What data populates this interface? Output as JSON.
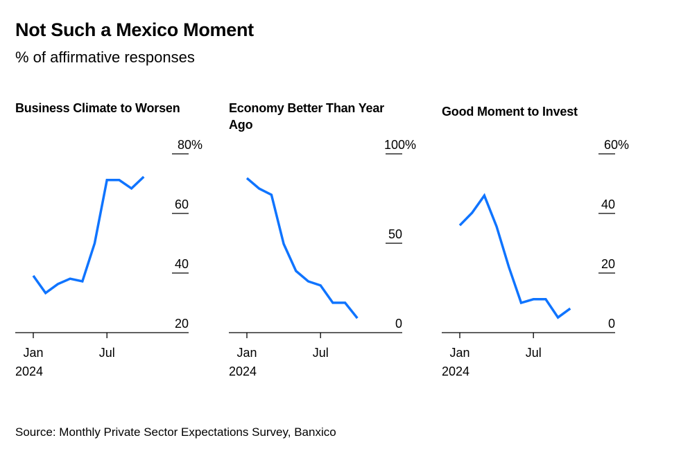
{
  "title": "Not Such a Mexico Moment",
  "subtitle": "% of affirmative responses",
  "source": "Source: Monthly Private Sector Expectations Survey, Banxico",
  "line_color": "#0f74ff",
  "chart_data": [
    {
      "type": "line",
      "title": "Business Climate to Worsen",
      "x": [
        "2024-01",
        "2024-02",
        "2024-03",
        "2024-04",
        "2024-05",
        "2024-06",
        "2024-07",
        "2024-08",
        "2024-09",
        "2024-10"
      ],
      "values": [
        39.1,
        33.3,
        36.3,
        38.1,
        37.2,
        50.0,
        71.2,
        71.2,
        68.4,
        72.3
      ],
      "ylim": [
        20,
        80
      ],
      "yticks": [
        20,
        40,
        60,
        80
      ],
      "ytick_labels": [
        "20",
        "40",
        "60",
        "80%"
      ],
      "xtick_labels": [
        "Jan",
        "Jul"
      ],
      "xtick_sublabel": "2024"
    },
    {
      "type": "line",
      "title": "Economy Better Than Year Ago",
      "x": [
        "2024-01",
        "2024-02",
        "2024-03",
        "2024-04",
        "2024-05",
        "2024-06",
        "2024-07",
        "2024-08",
        "2024-09",
        "2024-10"
      ],
      "values": [
        86.4,
        80.6,
        77.1,
        49.6,
        34.5,
        28.7,
        26.4,
        16.7,
        16.7,
        8.1
      ],
      "ylim": [
        0,
        100
      ],
      "yticks": [
        0,
        50,
        100
      ],
      "ytick_labels": [
        "0",
        "50",
        "100%"
      ],
      "xtick_labels": [
        "Jan",
        "Jul"
      ],
      "xtick_sublabel": "2024"
    },
    {
      "type": "line",
      "title": "Good Moment to Invest",
      "x": [
        "2024-01",
        "2024-02",
        "2024-03",
        "2024-04",
        "2024-05",
        "2024-06",
        "2024-07",
        "2024-08",
        "2024-09",
        "2024-10"
      ],
      "values": [
        36.0,
        40.2,
        46.0,
        35.6,
        22.0,
        10.0,
        11.2,
        11.2,
        5.1,
        8.1
      ],
      "ylim": [
        0,
        60
      ],
      "yticks": [
        0,
        20,
        40,
        60
      ],
      "ytick_labels": [
        "0",
        "20",
        "40",
        "60%"
      ],
      "xtick_labels": [
        "Jan",
        "Jul"
      ],
      "xtick_sublabel": "2024"
    }
  ]
}
